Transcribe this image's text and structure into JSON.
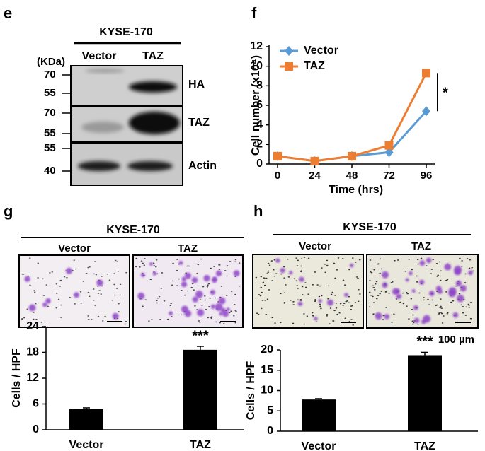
{
  "panels": {
    "e": {
      "label": "e",
      "header": "KYSE-170",
      "lanes": [
        "Vector",
        "TAZ"
      ],
      "unit": "(KDa)",
      "blots": [
        {
          "markers": [
            "70",
            "55"
          ],
          "name": "HA"
        },
        {
          "markers": [
            "70",
            "55"
          ],
          "name": "TAZ"
        },
        {
          "markers": [
            "55",
            "40"
          ],
          "name": "Actin"
        }
      ]
    },
    "f": {
      "label": "f"
    },
    "g": {
      "label": "g",
      "header": "KYSE-170",
      "images": [
        "Vector",
        "TAZ"
      ]
    },
    "h": {
      "label": "h",
      "header": "KYSE-170",
      "images": [
        "Vector",
        "TAZ"
      ],
      "scale_bar": "100 µm"
    }
  },
  "chart_data": [
    {
      "type": "line",
      "ylabel": "Cell number (x10⁴)",
      "xlabel": "Time (hrs)",
      "x": [
        0,
        24,
        48,
        72,
        96
      ],
      "xlim": [
        0,
        96
      ],
      "xticks": [
        0,
        24,
        48,
        72,
        96
      ],
      "ylim": [
        0,
        12
      ],
      "yticks": [
        0,
        2,
        4,
        6,
        8,
        10,
        12
      ],
      "legend": "upper left",
      "annotation": "*",
      "series": [
        {
          "name": "Vector",
          "color": "#5b9bd5",
          "marker": "diamond",
          "values": [
            0.8,
            0.3,
            0.8,
            1.2,
            5.4
          ]
        },
        {
          "name": "TAZ",
          "color": "#ed7d31",
          "marker": "square",
          "values": [
            0.8,
            0.3,
            0.8,
            1.9,
            9.3
          ]
        }
      ]
    },
    {
      "type": "bar",
      "ylabel": "Cells / HPF",
      "categories": [
        "Vector",
        "TAZ"
      ],
      "values": [
        4.8,
        18.6
      ],
      "errors": [
        0.3,
        0.8
      ],
      "color": "#000000",
      "ylim": [
        0,
        24
      ],
      "yticks": [
        0,
        6,
        12,
        18,
        24
      ],
      "annotation": "***"
    },
    {
      "type": "bar",
      "ylabel": "Cells / HPF",
      "categories": [
        "Vector",
        "TAZ"
      ],
      "values": [
        7.8,
        18.7
      ],
      "errors": [
        0.2,
        0.7
      ],
      "color": "#000000",
      "ylim": [
        0,
        20
      ],
      "yticks": [
        0,
        5,
        10,
        15,
        20
      ],
      "annotation": "***"
    }
  ]
}
